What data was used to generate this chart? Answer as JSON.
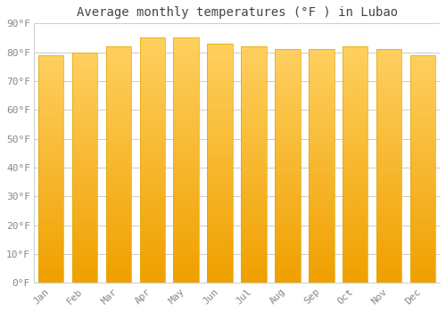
{
  "months": [
    "Jan",
    "Feb",
    "Mar",
    "Apr",
    "May",
    "Jun",
    "Jul",
    "Aug",
    "Sep",
    "Oct",
    "Nov",
    "Dec"
  ],
  "values": [
    79,
    80,
    82,
    85,
    85,
    83,
    82,
    81,
    81,
    82,
    81,
    79
  ],
  "bar_color_top": "#FFD060",
  "bar_color_bottom": "#F0A000",
  "title": "Average monthly temperatures (°F ) in Lubao",
  "ylim": [
    0,
    90
  ],
  "yticks": [
    0,
    10,
    20,
    30,
    40,
    50,
    60,
    70,
    80,
    90
  ],
  "ytick_labels": [
    "0°F",
    "10°F",
    "20°F",
    "30°F",
    "40°F",
    "50°F",
    "60°F",
    "70°F",
    "80°F",
    "90°F"
  ],
  "background_color": "#ffffff",
  "grid_color": "#cccccc",
  "title_fontsize": 10,
  "tick_fontsize": 8,
  "bar_width": 0.75,
  "bar_edge_color": "#ddaa00",
  "bar_edge_width": 0.5
}
